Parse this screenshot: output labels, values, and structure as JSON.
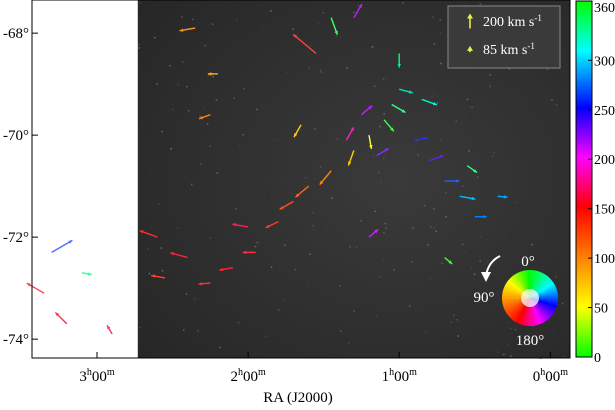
{
  "chart_data": {
    "type": "scatter",
    "title": "",
    "xlabel": "RA (J2000)",
    "ylabel": "",
    "x_ticks": [
      {
        "h": "3",
        "m": "00",
        "ra_hours": 3.0
      },
      {
        "h": "2",
        "m": "00",
        "ra_hours": 2.0
      },
      {
        "h": "1",
        "m": "00",
        "ra_hours": 1.0
      },
      {
        "h": "0",
        "m": "00",
        "ra_hours": 0.0
      }
    ],
    "y_ticks": [
      {
        "label": "-68°",
        "dec": -68
      },
      {
        "label": "-70°",
        "dec": -70
      },
      {
        "label": "-72°",
        "dec": -72
      },
      {
        "label": "-74°",
        "dec": -74
      }
    ],
    "xlim_ra_hours": [
      3.43,
      -0.13
    ],
    "ylim_dec": [
      -74.37,
      -67.35
    ],
    "image_coverage_ra_start": 2.73,
    "legend": {
      "placement": "top-right",
      "entries": [
        {
          "label_main": "200 km s",
          "label_sup": "-1",
          "speed_kms": 200
        },
        {
          "label_main": "85 km s",
          "label_sup": "-1",
          "speed_kms": 85
        }
      ],
      "arrow_color": "#e6f04a"
    },
    "colorbar": {
      "min": 0,
      "max": 360,
      "tick_labels": [
        "360",
        "300",
        "250",
        "200",
        "150",
        "100",
        "50",
        "0"
      ],
      "colors_top_to_bottom": [
        "#00ff00",
        "#00ffff",
        "#0000ff",
        "#ff00ff",
        "#ff0000",
        "#ff8000",
        "#ffff00",
        "#00ff00"
      ]
    },
    "color_wheel": {
      "placement": "bottom-right",
      "labels": {
        "top": "0°",
        "left": "90°",
        "bottom": "180°"
      }
    },
    "series": [
      {
        "ra": 2.25,
        "dec": -72.9,
        "pa": 95,
        "speed": 60,
        "color": "#ff2a3a"
      },
      {
        "ra": 2.1,
        "dec": -72.6,
        "pa": 100,
        "speed": 70,
        "color": "#ff2233"
      },
      {
        "ra": 1.95,
        "dec": -72.3,
        "pa": 90,
        "speed": 65,
        "color": "#ff3040"
      },
      {
        "ra": 1.8,
        "dec": -71.7,
        "pa": 115,
        "speed": 70,
        "color": "#ff3a2a"
      },
      {
        "ra": 1.7,
        "dec": -71.3,
        "pa": 120,
        "speed": 80,
        "color": "#ff5020"
      },
      {
        "ra": 1.6,
        "dec": -71.0,
        "pa": 130,
        "speed": 85,
        "color": "#ff6a20"
      },
      {
        "ra": 1.45,
        "dec": -70.7,
        "pa": 140,
        "speed": 90,
        "color": "#ff8a10"
      },
      {
        "ra": 1.3,
        "dec": -70.3,
        "pa": 160,
        "speed": 80,
        "color": "#ffd000"
      },
      {
        "ra": 1.2,
        "dec": -70.0,
        "pa": 190,
        "speed": 70,
        "color": "#ffff30"
      },
      {
        "ra": 1.1,
        "dec": -69.7,
        "pa": 220,
        "speed": 75,
        "color": "#40ff40"
      },
      {
        "ra": 1.05,
        "dec": -69.4,
        "pa": 240,
        "speed": 80,
        "color": "#30ff90"
      },
      {
        "ra": 1.0,
        "dec": -69.1,
        "pa": 255,
        "speed": 70,
        "color": "#00e0c0"
      },
      {
        "ra": 0.9,
        "dec": -70.1,
        "pa": 280,
        "speed": 70,
        "color": "#2030ff"
      },
      {
        "ra": 0.8,
        "dec": -70.5,
        "pa": 290,
        "speed": 75,
        "color": "#6020ff"
      },
      {
        "ra": 0.7,
        "dec": -70.9,
        "pa": 270,
        "speed": 75,
        "color": "#2060ff"
      },
      {
        "ra": 0.6,
        "dec": -71.2,
        "pa": 260,
        "speed": 80,
        "color": "#00c0ff"
      },
      {
        "ra": 1.25,
        "dec": -69.6,
        "pa": 310,
        "speed": 70,
        "color": "#c020ff"
      },
      {
        "ra": 1.35,
        "dec": -70.1,
        "pa": 330,
        "speed": 75,
        "color": "#ff20c0"
      },
      {
        "ra": 1.15,
        "dec": -70.4,
        "pa": 300,
        "speed": 70,
        "color": "#8030ff"
      },
      {
        "ra": 0.85,
        "dec": -69.3,
        "pa": 250,
        "speed": 80,
        "color": "#00ffd0"
      },
      {
        "ra": 2.0,
        "dec": -71.8,
        "pa": 80,
        "speed": 80,
        "color": "#ff2050"
      },
      {
        "ra": 2.4,
        "dec": -72.4,
        "pa": 75,
        "speed": 90,
        "color": "#ff2040"
      },
      {
        "ra": 2.6,
        "dec": -72.0,
        "pa": 70,
        "speed": 95,
        "color": "#ff3030"
      },
      {
        "ra": 2.55,
        "dec": -72.8,
        "pa": 80,
        "speed": 70,
        "color": "#ff4030"
      },
      {
        "ra": 1.55,
        "dec": -68.4,
        "pa": 50,
        "speed": 150,
        "color": "#ff4040"
      },
      {
        "ra": 1.45,
        "dec": -67.7,
        "pa": 200,
        "speed": 90,
        "color": "#40ff60"
      },
      {
        "ra": 1.3,
        "dec": -67.7,
        "pa": 330,
        "speed": 80,
        "color": "#c020ff"
      },
      {
        "ra": 2.35,
        "dec": -67.9,
        "pa": 100,
        "speed": 80,
        "color": "#ff9020"
      },
      {
        "ra": 2.2,
        "dec": -68.8,
        "pa": 90,
        "speed": 50,
        "color": "#ffb020"
      },
      {
        "ra": 2.25,
        "dec": -69.6,
        "pa": 110,
        "speed": 60,
        "color": "#ff8010"
      },
      {
        "ra": 1.65,
        "dec": -69.8,
        "pa": 150,
        "speed": 70,
        "color": "#ffd020"
      },
      {
        "ra": 3.3,
        "dec": -72.3,
        "pa": 300,
        "speed": 120,
        "color": "#5070ff"
      },
      {
        "ra": 3.1,
        "dec": -72.7,
        "pa": 260,
        "speed": 50,
        "color": "#30ffa0"
      },
      {
        "ra": 3.35,
        "dec": -73.1,
        "pa": 60,
        "speed": 100,
        "color": "#ff4050"
      },
      {
        "ra": 3.2,
        "dec": -73.7,
        "pa": 45,
        "speed": 80,
        "color": "#ff3050"
      },
      {
        "ra": 2.9,
        "dec": -73.9,
        "pa": 30,
        "speed": 50,
        "color": "#ff3060"
      },
      {
        "ra": 0.55,
        "dec": -70.6,
        "pa": 235,
        "speed": 60,
        "color": "#30ff80"
      },
      {
        "ra": 0.5,
        "dec": -71.6,
        "pa": 270,
        "speed": 60,
        "color": "#0080ff"
      },
      {
        "ra": 0.35,
        "dec": -71.2,
        "pa": 265,
        "speed": 50,
        "color": "#00b0ff"
      },
      {
        "ra": 0.7,
        "dec": -72.4,
        "pa": 230,
        "speed": 50,
        "color": "#40ff40"
      },
      {
        "ra": 1.2,
        "dec": -72.0,
        "pa": 310,
        "speed": 60,
        "color": "#d020ff"
      },
      {
        "ra": 1.0,
        "dec": -68.4,
        "pa": 180,
        "speed": 70,
        "color": "#00ff80"
      }
    ]
  }
}
